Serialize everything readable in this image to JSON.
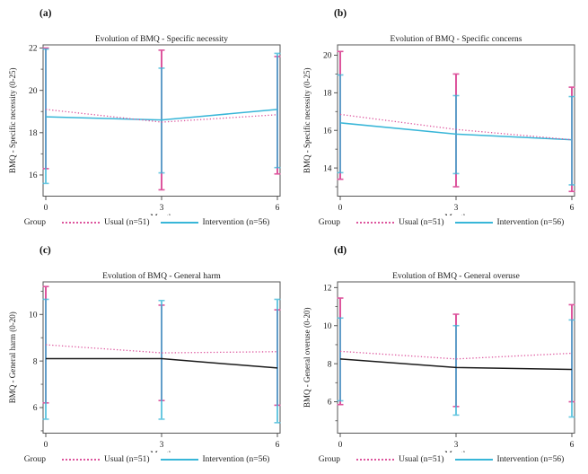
{
  "legend": {
    "title": "Group",
    "usual": "Usual (n=51)",
    "intervention": "Intervention (n=56)"
  },
  "colors": {
    "usual_pink": "#dd559d",
    "intervention_cyan": "#38b6d8",
    "intervention_black_line": "#1a1a1a",
    "frame": "#555555",
    "text": "#1a1a1a"
  },
  "chart_data": [
    {
      "panel_label": "(a)",
      "type": "line",
      "title": "Evolution of BMQ - Specific necessity",
      "xlabel": "Month",
      "ylabel": "BMQ - Specific necessity (0-25)",
      "x": [
        0,
        3,
        6
      ],
      "xlim": [
        0,
        6
      ],
      "ylim": [
        15.0,
        22.15
      ],
      "yticks": [
        16,
        18,
        20,
        22
      ],
      "grid": false,
      "legend_position": "bottom",
      "series": [
        {
          "name": "Usual (n=51)",
          "style": "dotted",
          "line_color": "#dd559d",
          "bar_color": "#dd559d",
          "values": [
            19.1,
            18.5,
            18.85
          ],
          "ci_low": [
            16.3,
            15.3,
            16.05
          ],
          "ci_high": [
            22.0,
            21.9,
            21.6
          ]
        },
        {
          "name": "Intervention (n=56)",
          "style": "solid",
          "line_color": "#38b6d8",
          "bar_color": "#38b6d8",
          "values": [
            18.75,
            18.6,
            19.1
          ],
          "ci_low": [
            15.6,
            16.1,
            16.35
          ],
          "ci_high": [
            21.95,
            21.05,
            21.75
          ]
        }
      ]
    },
    {
      "panel_label": "(b)",
      "type": "line",
      "title": "Evolution of BMQ - Specific concerns",
      "xlabel": "Month",
      "ylabel": "BMQ - Specific necessity (0-25)",
      "x": [
        0,
        3,
        6
      ],
      "xlim": [
        0,
        6
      ],
      "ylim": [
        12.5,
        20.55
      ],
      "yticks": [
        14,
        16,
        18,
        20
      ],
      "grid": false,
      "legend_position": "bottom",
      "series": [
        {
          "name": "Usual (n=51)",
          "style": "dotted",
          "line_color": "#dd559d",
          "bar_color": "#dd559d",
          "values": [
            16.85,
            16.05,
            15.5
          ],
          "ci_low": [
            13.4,
            13.0,
            12.75
          ],
          "ci_high": [
            20.2,
            19.0,
            18.3
          ]
        },
        {
          "name": "Intervention (n=56)",
          "style": "solid",
          "line_color": "#38b6d8",
          "bar_color": "#38b6d8",
          "values": [
            16.4,
            15.8,
            15.5
          ],
          "ci_low": [
            13.75,
            13.7,
            13.1
          ],
          "ci_high": [
            18.95,
            17.85,
            17.8
          ]
        }
      ]
    },
    {
      "panel_label": "(c)",
      "type": "line",
      "title": "Evolution of BMQ - General harm",
      "xlabel": "Month",
      "ylabel": "BMQ - General harm (0-20)",
      "x": [
        0,
        3,
        6
      ],
      "xlim": [
        0,
        6
      ],
      "ylim": [
        4.9,
        11.4
      ],
      "yticks": [
        6,
        8,
        10
      ],
      "grid": false,
      "legend_position": "bottom",
      "series": [
        {
          "name": "Usual (n=51)",
          "style": "dotted",
          "line_color": "#dd559d",
          "bar_color": "#dd559d",
          "values": [
            8.7,
            8.35,
            8.4
          ],
          "ci_low": [
            6.2,
            6.3,
            6.1
          ],
          "ci_high": [
            11.2,
            10.4,
            10.2
          ]
        },
        {
          "name": "Intervention (n=56)",
          "style": "solid",
          "line_color": "#1a1a1a",
          "bar_color": "#38b6d8",
          "values": [
            8.1,
            8.1,
            7.7
          ],
          "ci_low": [
            5.5,
            5.5,
            5.35
          ],
          "ci_high": [
            10.65,
            10.6,
            10.65
          ]
        }
      ]
    },
    {
      "panel_label": "(d)",
      "type": "line",
      "title": "Evolution of BMQ - General overuse",
      "xlabel": "Month",
      "ylabel": "BMQ - General overuse (0-20)",
      "x": [
        0,
        3,
        6
      ],
      "xlim": [
        0,
        6
      ],
      "ylim": [
        4.35,
        12.3
      ],
      "yticks": [
        6,
        8,
        10,
        12
      ],
      "grid": false,
      "legend_position": "bottom",
      "series": [
        {
          "name": "Usual (n=51)",
          "style": "dotted",
          "line_color": "#dd559d",
          "bar_color": "#dd559d",
          "values": [
            8.65,
            8.25,
            8.55
          ],
          "ci_low": [
            5.85,
            5.75,
            6.0
          ],
          "ci_high": [
            11.45,
            10.6,
            11.1
          ]
        },
        {
          "name": "Intervention (n=56)",
          "style": "solid",
          "line_color": "#1a1a1a",
          "bar_color": "#38b6d8",
          "values": [
            8.25,
            7.8,
            7.7
          ],
          "ci_low": [
            6.05,
            5.3,
            5.2
          ],
          "ci_high": [
            10.4,
            10.0,
            10.3
          ]
        }
      ]
    }
  ]
}
